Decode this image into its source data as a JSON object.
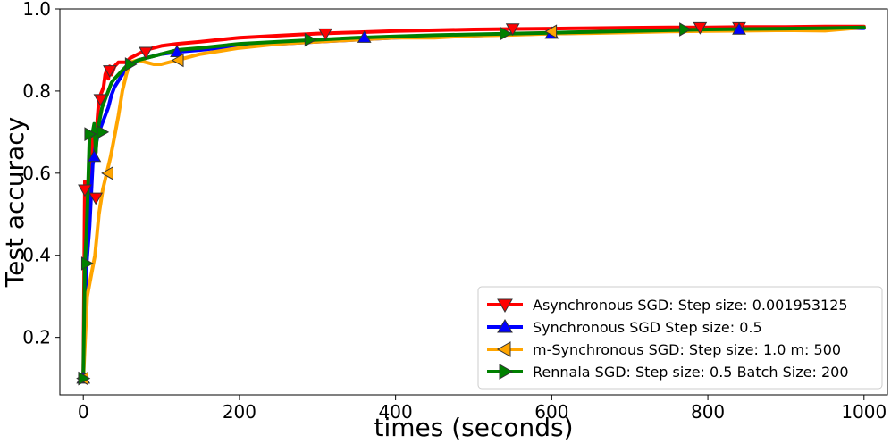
{
  "chart_data": {
    "type": "line",
    "title": "",
    "xlabel": "times (seconds)",
    "ylabel": "Test accuracy",
    "xlim": [
      -30,
      1030
    ],
    "ylim": [
      0.06,
      1.0
    ],
    "xticks": [
      0,
      200,
      400,
      600,
      800,
      1000
    ],
    "yticks": [
      0.2,
      0.4,
      0.6,
      0.8,
      1.0
    ],
    "xtick_labels": [
      "0",
      "200",
      "400",
      "600",
      "800",
      "1000"
    ],
    "ytick_labels": [
      "0.2",
      "0.4",
      "0.6",
      "0.8",
      "1.0"
    ],
    "grid": false,
    "legend_position": "lower right",
    "series": [
      {
        "name": "Asynchronous SGD: Step size: 0.001953125",
        "color": "#ff0000",
        "marker": "triangle-down",
        "x": [
          0,
          2,
          4,
          6,
          8,
          10,
          12,
          14,
          16,
          18,
          20,
          22,
          24,
          26,
          28,
          30,
          32,
          34,
          36,
          40,
          45,
          50,
          55,
          60,
          70,
          80,
          90,
          100,
          120,
          150,
          200,
          250,
          300,
          350,
          400,
          450,
          500,
          550,
          600,
          650,
          700,
          750,
          800,
          850,
          900,
          950,
          1000
        ],
        "y": [
          0.1,
          0.58,
          0.34,
          0.56,
          0.54,
          0.61,
          0.7,
          0.69,
          0.65,
          0.73,
          0.78,
          0.79,
          0.8,
          0.81,
          0.84,
          0.85,
          0.83,
          0.86,
          0.84,
          0.86,
          0.87,
          0.87,
          0.87,
          0.88,
          0.89,
          0.9,
          0.905,
          0.91,
          0.915,
          0.92,
          0.93,
          0.935,
          0.94,
          0.943,
          0.946,
          0.948,
          0.95,
          0.951,
          0.952,
          0.953,
          0.954,
          0.955,
          0.955,
          0.956,
          0.956,
          0.957,
          0.957
        ],
        "marker_x": [
          2,
          16,
          22,
          34,
          80,
          310,
          550,
          790,
          840
        ],
        "marker_y": [
          0.56,
          0.54,
          0.78,
          0.85,
          0.895,
          0.94,
          0.952,
          0.955,
          0.955
        ]
      },
      {
        "name": "Synchronous SGD Step size: 0.5",
        "color": "#0000ff",
        "marker": "triangle-up",
        "x": [
          0,
          4,
          8,
          12,
          16,
          20,
          24,
          28,
          32,
          36,
          40,
          50,
          60,
          70,
          80,
          100,
          120,
          150,
          200,
          250,
          300,
          350,
          400,
          450,
          500,
          550,
          600,
          650,
          700,
          750,
          800,
          850,
          900,
          950,
          1000
        ],
        "y": [
          0.1,
          0.37,
          0.47,
          0.62,
          0.67,
          0.7,
          0.72,
          0.74,
          0.76,
          0.79,
          0.81,
          0.84,
          0.86,
          0.875,
          0.88,
          0.89,
          0.895,
          0.9,
          0.91,
          0.915,
          0.92,
          0.925,
          0.93,
          0.933,
          0.935,
          0.938,
          0.94,
          0.942,
          0.944,
          0.946,
          0.948,
          0.95,
          0.951,
          0.952,
          0.953
        ],
        "marker_x": [
          0,
          14,
          120,
          360,
          600,
          840
        ],
        "marker_y": [
          0.1,
          0.64,
          0.895,
          0.93,
          0.94,
          0.95
        ]
      },
      {
        "name": "m-Synchronous  SGD: Step size: 1.0 m: 500",
        "color": "#ffa500",
        "marker": "triangle-left",
        "x": [
          0,
          5,
          10,
          15,
          20,
          25,
          30,
          35,
          40,
          45,
          50,
          55,
          60,
          70,
          80,
          90,
          100,
          120,
          150,
          200,
          250,
          300,
          350,
          400,
          450,
          500,
          550,
          600,
          650,
          700,
          750,
          800,
          850,
          900,
          950,
          1000
        ],
        "y": [
          0.1,
          0.3,
          0.35,
          0.4,
          0.5,
          0.56,
          0.6,
          0.64,
          0.69,
          0.74,
          0.8,
          0.84,
          0.87,
          0.875,
          0.87,
          0.865,
          0.865,
          0.875,
          0.89,
          0.905,
          0.915,
          0.92,
          0.925,
          0.93,
          0.93,
          0.935,
          0.937,
          0.94,
          0.941,
          0.943,
          0.945,
          0.946,
          0.947,
          0.948,
          0.947,
          0.955
        ],
        "marker_x": [
          0,
          32,
          122,
          600
        ],
        "marker_y": [
          0.1,
          0.6,
          0.875,
          0.945
        ]
      },
      {
        "name": "Rennala SGD: Step size: 0.5 Batch Size: 200",
        "color": "#008000",
        "marker": "triangle-right",
        "x": [
          0,
          2,
          4,
          6,
          8,
          10,
          12,
          14,
          16,
          18,
          20,
          22,
          24,
          28,
          32,
          36,
          40,
          45,
          50,
          55,
          60,
          70,
          80,
          90,
          100,
          120,
          150,
          200,
          250,
          300,
          350,
          400,
          450,
          500,
          550,
          600,
          650,
          700,
          750,
          800,
          850,
          900,
          950,
          1000
        ],
        "y": [
          0.1,
          0.38,
          0.45,
          0.56,
          0.69,
          0.69,
          0.7,
          0.72,
          0.65,
          0.7,
          0.72,
          0.74,
          0.76,
          0.78,
          0.8,
          0.82,
          0.83,
          0.84,
          0.85,
          0.86,
          0.865,
          0.875,
          0.88,
          0.885,
          0.89,
          0.9,
          0.905,
          0.915,
          0.92,
          0.925,
          0.93,
          0.933,
          0.936,
          0.938,
          0.94,
          0.942,
          0.944,
          0.946,
          0.948,
          0.95,
          0.951,
          0.952,
          0.953,
          0.955
        ],
        "marker_x": [
          0,
          4,
          8,
          24,
          60,
          290,
          540,
          770
        ],
        "marker_y": [
          0.1,
          0.38,
          0.695,
          0.7,
          0.865,
          0.925,
          0.94,
          0.95
        ]
      }
    ]
  }
}
